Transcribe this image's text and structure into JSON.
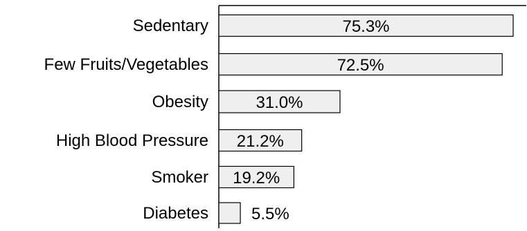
{
  "chart_data": {
    "type": "bar",
    "orientation": "horizontal",
    "categories": [
      "Sedentary",
      "Few Fruits/Vegetables",
      "Obesity",
      "High Blood Pressure",
      "Smoker",
      "Diabetes"
    ],
    "values": [
      75.3,
      72.5,
      31.0,
      21.2,
      19.2,
      5.5
    ],
    "value_labels": [
      "75.3%",
      "72.5%",
      "31.0%",
      "21.2%",
      "19.2%",
      "5.5%"
    ],
    "unit": "%",
    "title": "",
    "xlabel": "",
    "ylabel": "",
    "xlim": [
      0,
      75.3
    ],
    "grid": false,
    "legend": "none",
    "colors": {
      "bar_fill": "#efefef",
      "bar_stroke": "#000000",
      "axis": "#000000",
      "text": "#000000"
    }
  }
}
